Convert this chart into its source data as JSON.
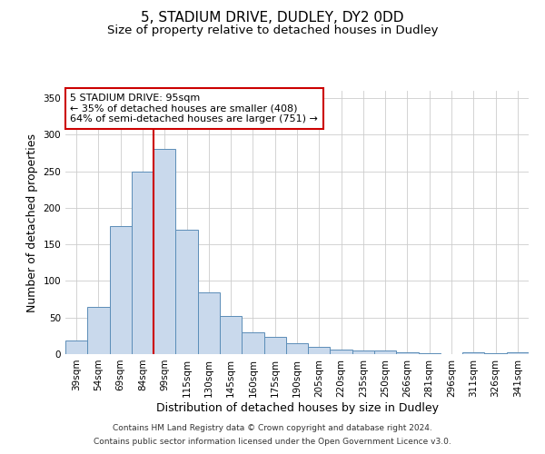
{
  "title": "5, STADIUM DRIVE, DUDLEY, DY2 0DD",
  "subtitle": "Size of property relative to detached houses in Dudley",
  "xlabel": "Distribution of detached houses by size in Dudley",
  "ylabel": "Number of detached properties",
  "categories": [
    "39sqm",
    "54sqm",
    "69sqm",
    "84sqm",
    "99sqm",
    "115sqm",
    "130sqm",
    "145sqm",
    "160sqm",
    "175sqm",
    "190sqm",
    "205sqm",
    "220sqm",
    "235sqm",
    "250sqm",
    "266sqm",
    "281sqm",
    "296sqm",
    "311sqm",
    "326sqm",
    "341sqm"
  ],
  "values": [
    19,
    65,
    175,
    250,
    280,
    170,
    85,
    52,
    30,
    23,
    15,
    10,
    6,
    5,
    5,
    2,
    1,
    0,
    3,
    1,
    3
  ],
  "bar_color": "#c9d9ec",
  "bar_edge_color": "#5b8db8",
  "vline_color": "#cc0000",
  "vline_index": 4,
  "annotation_title": "5 STADIUM DRIVE: 95sqm",
  "annotation_line1": "← 35% of detached houses are smaller (408)",
  "annotation_line2": "64% of semi-detached houses are larger (751) →",
  "annotation_box_color": "#cc0000",
  "ylim": [
    0,
    360
  ],
  "yticks": [
    0,
    50,
    100,
    150,
    200,
    250,
    300,
    350
  ],
  "footer_line1": "Contains HM Land Registry data © Crown copyright and database right 2024.",
  "footer_line2": "Contains public sector information licensed under the Open Government Licence v3.0.",
  "title_fontsize": 11,
  "subtitle_fontsize": 9.5,
  "axis_label_fontsize": 9,
  "tick_fontsize": 7.5,
  "annotation_fontsize": 8,
  "footer_fontsize": 6.5
}
